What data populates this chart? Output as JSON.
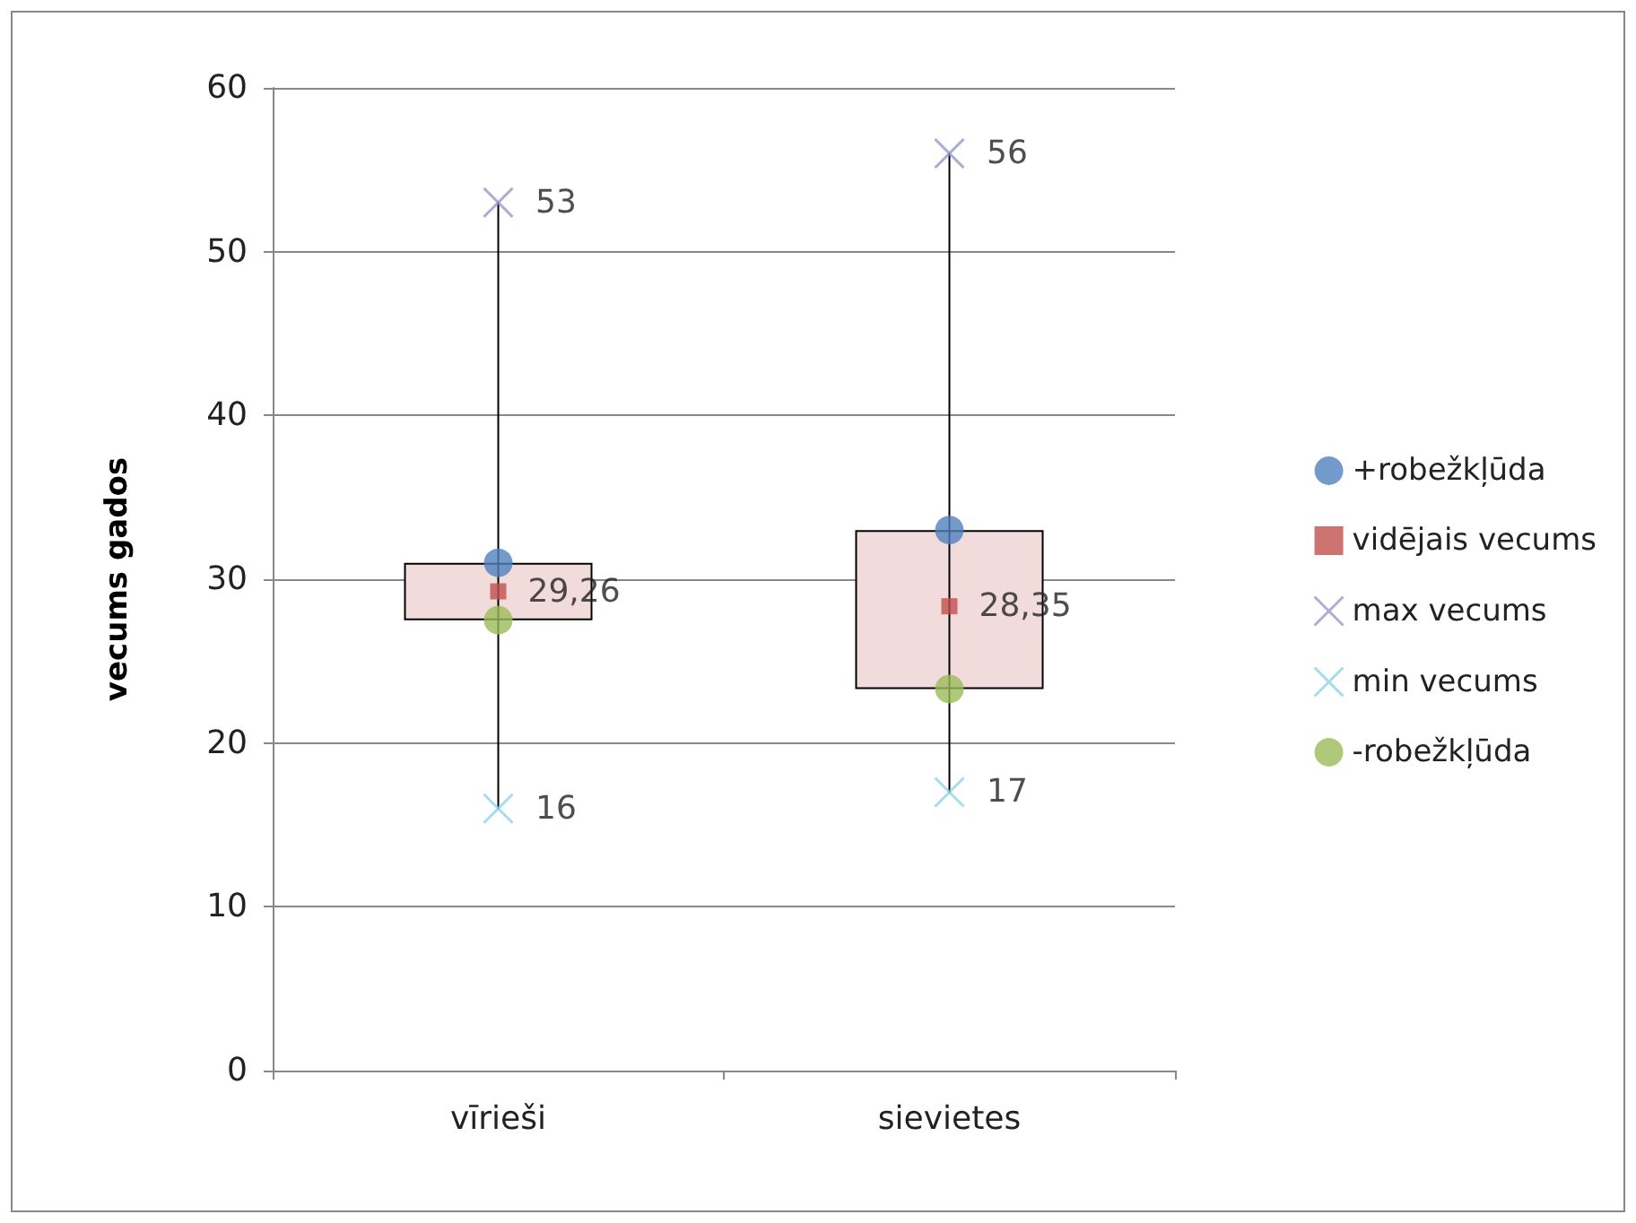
{
  "chart_data": {
    "type": "scatter",
    "ylabel": "vecums gados",
    "categories": [
      "vīrieši",
      "sievietes"
    ],
    "ylim": [
      0,
      60
    ],
    "yticks": [
      0,
      10,
      20,
      30,
      40,
      50,
      60
    ],
    "grid": "y",
    "legend": "right",
    "series": [
      {
        "type": "bar",
        "color": "#f2dcdb",
        "base": [
          27.5,
          23.3
        ],
        "values": [
          3.5,
          9.7
        ]
      },
      {
        "type": "line",
        "color": "#000000",
        "x": [
          "vīrieši",
          "vīrieši"
        ],
        "values": [
          16,
          53
        ],
        "marker": "none"
      },
      {
        "type": "line",
        "color": "#000000",
        "x": [
          "sievietes",
          "sievietes"
        ],
        "values": [
          17,
          56
        ],
        "marker": "none"
      },
      {
        "name": "+robežkļūda",
        "color": "#4f81bd",
        "marker": "circle",
        "values": [
          31,
          33
        ]
      },
      {
        "name": "vidējais vecums",
        "color": "#c0504d",
        "marker": "square",
        "values": [
          29.26,
          28.35
        ],
        "value_labels": [
          "29,26",
          "28,35"
        ]
      },
      {
        "name": "max vecums",
        "color": "#9999cc",
        "marker": "cross",
        "values": [
          53,
          56
        ],
        "value_labels": [
          "53",
          "56"
        ]
      },
      {
        "name": "min vecums",
        "color": "#8fd3ea",
        "marker": "cross",
        "values": [
          16,
          17
        ],
        "value_labels": [
          "16",
          "17"
        ]
      },
      {
        "name": "-robežkļūda",
        "color": "#9bbb59",
        "marker": "circle",
        "values": [
          27.5,
          23.3
        ]
      }
    ]
  }
}
